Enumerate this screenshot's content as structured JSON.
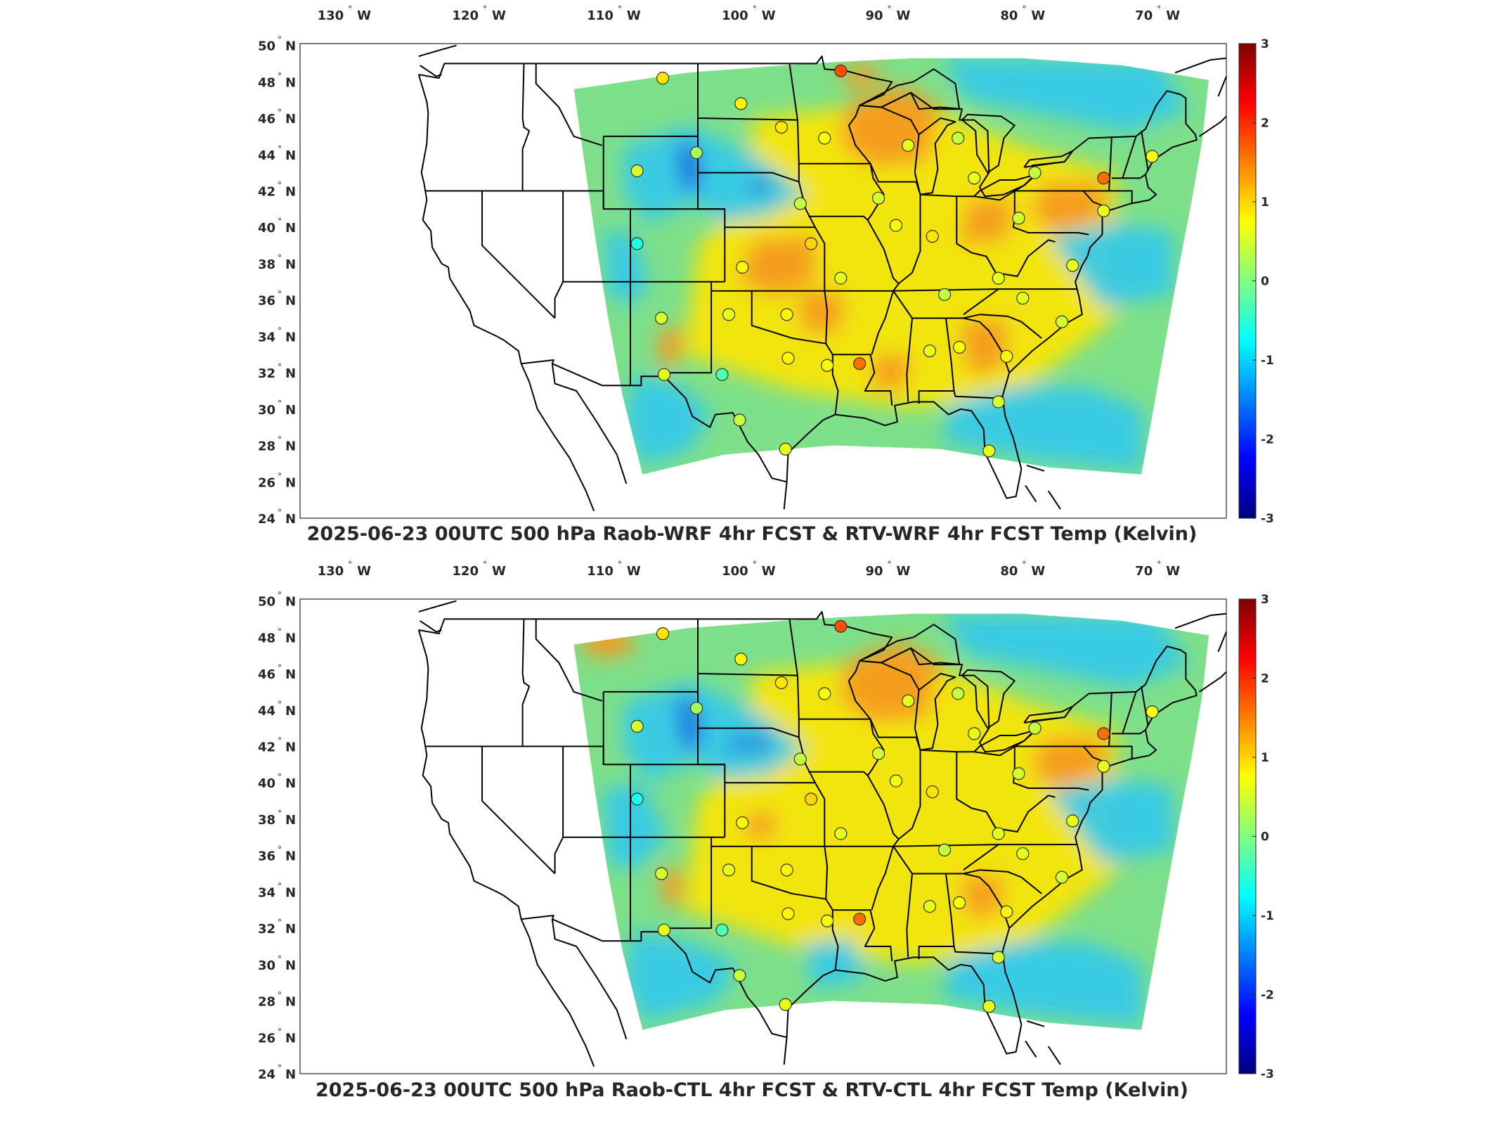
{
  "map_panels": [
    {
      "title": "2025-06-23 00UTC 500 hPa Raob-WRF 4hr FCST & RTV-WRF 4hr FCST Temp (Kelvin)",
      "variant": "wrf"
    },
    {
      "title": "2025-06-23 00UTC 500 hPa Raob-CTL 4hr FCST & RTV-CTL 4hr FCST Temp (Kelvin)",
      "variant": "ctl"
    }
  ],
  "lon_ticks": [
    {
      "value": -130,
      "num": "130",
      "hemi": "W"
    },
    {
      "value": -120,
      "num": "120",
      "hemi": "W"
    },
    {
      "value": -110,
      "num": "110",
      "hemi": "W"
    },
    {
      "value": -100,
      "num": "100",
      "hemi": "W"
    },
    {
      "value": -90,
      "num": "90",
      "hemi": "W"
    },
    {
      "value": -80,
      "num": "80",
      "hemi": "W"
    },
    {
      "value": -70,
      "num": "70",
      "hemi": "W"
    }
  ],
  "lat_ticks": [
    {
      "value": 50,
      "num": "50",
      "hemi": "N"
    },
    {
      "value": 48,
      "num": "48",
      "hemi": "N"
    },
    {
      "value": 46,
      "num": "46",
      "hemi": "N"
    },
    {
      "value": 44,
      "num": "44",
      "hemi": "N"
    },
    {
      "value": 42,
      "num": "42",
      "hemi": "N"
    },
    {
      "value": 40,
      "num": "40",
      "hemi": "N"
    },
    {
      "value": 38,
      "num": "38",
      "hemi": "N"
    },
    {
      "value": 36,
      "num": "36",
      "hemi": "N"
    },
    {
      "value": 34,
      "num": "34",
      "hemi": "N"
    },
    {
      "value": 32,
      "num": "32",
      "hemi": "N"
    },
    {
      "value": 30,
      "num": "30",
      "hemi": "N"
    },
    {
      "value": 28,
      "num": "28",
      "hemi": "N"
    },
    {
      "value": 26,
      "num": "26",
      "hemi": "N"
    },
    {
      "value": 24,
      "num": "24",
      "hemi": "N"
    }
  ],
  "colorbar": {
    "min": -3,
    "max": 3,
    "ticks": [
      "3",
      "2",
      "1",
      "0",
      "-1",
      "-2",
      "-3"
    ],
    "colormap": [
      "#00007f",
      "#0000ff",
      "#007fff",
      "#00ffff",
      "#7fff7f",
      "#ffff00",
      "#ff7f00",
      "#ff0000",
      "#7f0000"
    ]
  },
  "field_colors": {
    "background": "#7ee08a",
    "warm": "#ffe600",
    "hot": "#f59a1d",
    "cool": "#37c9e8",
    "cold": "#1a55e0"
  },
  "raob_stations": [
    {
      "lon": -106.6,
      "lat": 48.2,
      "value": 0.9
    },
    {
      "lon": -100.8,
      "lat": 46.8,
      "value": 0.8
    },
    {
      "lon": -93.4,
      "lat": 48.6,
      "value": 1.8
    },
    {
      "lon": -97.8,
      "lat": 45.5,
      "value": 0.9
    },
    {
      "lon": -94.6,
      "lat": 44.9,
      "value": 0.7
    },
    {
      "lon": -88.4,
      "lat": 44.5,
      "value": 0.6
    },
    {
      "lon": -84.7,
      "lat": 44.9,
      "value": 0.4
    },
    {
      "lon": -83.5,
      "lat": 42.7,
      "value": 0.6
    },
    {
      "lon": -79.0,
      "lat": 43.0,
      "value": 0.4
    },
    {
      "lon": -73.9,
      "lat": 42.7,
      "value": 1.6
    },
    {
      "lon": -70.3,
      "lat": 43.9,
      "value": 0.7
    },
    {
      "lon": -108.5,
      "lat": 43.1,
      "value": 0.5
    },
    {
      "lon": -104.1,
      "lat": 44.1,
      "value": 0.2
    },
    {
      "lon": -96.4,
      "lat": 41.3,
      "value": 0.4
    },
    {
      "lon": -90.6,
      "lat": 41.6,
      "value": 0.5
    },
    {
      "lon": -89.3,
      "lat": 40.1,
      "value": 0.7
    },
    {
      "lon": -86.6,
      "lat": 39.5,
      "value": 0.9
    },
    {
      "lon": -80.2,
      "lat": 40.5,
      "value": 0.5
    },
    {
      "lon": -73.9,
      "lat": 40.9,
      "value": 0.6
    },
    {
      "lon": -108.5,
      "lat": 39.1,
      "value": -0.6
    },
    {
      "lon": -100.7,
      "lat": 37.8,
      "value": 0.8
    },
    {
      "lon": -95.6,
      "lat": 39.1,
      "value": 1.0
    },
    {
      "lon": -93.4,
      "lat": 37.2,
      "value": 0.6
    },
    {
      "lon": -85.7,
      "lat": 36.3,
      "value": 0.4
    },
    {
      "lon": -81.7,
      "lat": 37.2,
      "value": 0.6
    },
    {
      "lon": -76.2,
      "lat": 37.9,
      "value": 0.6
    },
    {
      "lon": -79.9,
      "lat": 36.1,
      "value": 0.6
    },
    {
      "lon": -77.0,
      "lat": 34.8,
      "value": 0.5
    },
    {
      "lon": -106.7,
      "lat": 35.0,
      "value": 0.5
    },
    {
      "lon": -101.7,
      "lat": 35.2,
      "value": 0.6
    },
    {
      "lon": -97.4,
      "lat": 35.2,
      "value": 0.8
    },
    {
      "lon": -106.5,
      "lat": 31.9,
      "value": 0.6
    },
    {
      "lon": -102.2,
      "lat": 31.9,
      "value": -0.3
    },
    {
      "lon": -97.3,
      "lat": 32.8,
      "value": 0.8
    },
    {
      "lon": -92.0,
      "lat": 32.5,
      "value": 1.6
    },
    {
      "lon": -94.4,
      "lat": 32.4,
      "value": 0.7
    },
    {
      "lon": -86.8,
      "lat": 33.2,
      "value": 0.6
    },
    {
      "lon": -84.6,
      "lat": 33.4,
      "value": 0.7
    },
    {
      "lon": -81.1,
      "lat": 32.9,
      "value": 0.8
    },
    {
      "lon": -100.9,
      "lat": 29.4,
      "value": 0.4
    },
    {
      "lon": -97.5,
      "lat": 27.8,
      "value": 0.6
    },
    {
      "lon": -81.7,
      "lat": 30.4,
      "value": 0.5
    },
    {
      "lon": -82.4,
      "lat": 27.7,
      "value": 0.6
    }
  ]
}
